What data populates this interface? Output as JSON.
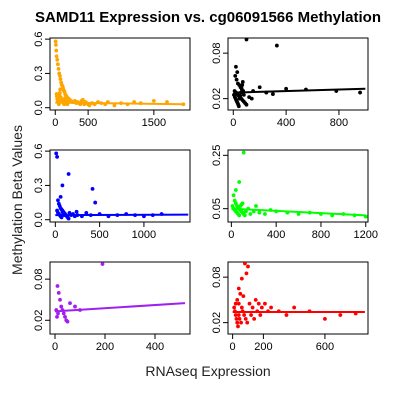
{
  "chart_data": {
    "type": "scatter",
    "title": "SAMD11 Expression vs. cg06091566 Methylation",
    "xlabel": "RNAseq Expression",
    "ylabel": "Methylation Beta Values",
    "panels": [
      {
        "color": "#FFA500",
        "xlim": [
          -80,
          2050
        ],
        "ylim": [
          -0.02,
          0.61
        ],
        "xticks": [
          0,
          500,
          1500
        ],
        "yticks": [
          0.0,
          0.3,
          0.6
        ],
        "xticklabels": [
          "0",
          "500",
          "1500"
        ],
        "yticklabels": [
          "0.0",
          "0.3",
          "0.6"
        ],
        "fit": [
          [
            0,
            0.045
          ],
          [
            1950,
            0.03
          ]
        ],
        "points": [
          [
            5,
            0.58
          ],
          [
            10,
            0.55
          ],
          [
            15,
            0.5
          ],
          [
            20,
            0.45
          ],
          [
            30,
            0.42
          ],
          [
            40,
            0.38
          ],
          [
            50,
            0.34
          ],
          [
            60,
            0.3
          ],
          [
            70,
            0.28
          ],
          [
            80,
            0.25
          ],
          [
            90,
            0.22
          ],
          [
            100,
            0.2
          ],
          [
            110,
            0.19
          ],
          [
            120,
            0.17
          ],
          [
            130,
            0.15
          ],
          [
            140,
            0.14
          ],
          [
            150,
            0.12
          ],
          [
            160,
            0.11
          ],
          [
            170,
            0.1
          ],
          [
            180,
            0.09
          ],
          [
            200,
            0.08
          ],
          [
            220,
            0.07
          ],
          [
            240,
            0.06
          ],
          [
            260,
            0.05
          ],
          [
            280,
            0.05
          ],
          [
            300,
            0.06
          ],
          [
            320,
            0.04
          ],
          [
            340,
            0.05
          ],
          [
            360,
            0.04
          ],
          [
            380,
            0.03
          ],
          [
            400,
            0.06
          ],
          [
            420,
            0.07
          ],
          [
            440,
            0.03
          ],
          [
            460,
            0.05
          ],
          [
            480,
            0.04
          ],
          [
            500,
            0.03
          ],
          [
            520,
            0.02
          ],
          [
            560,
            0.04
          ],
          [
            600,
            0.03
          ],
          [
            650,
            0.05
          ],
          [
            700,
            0.04
          ],
          [
            760,
            0.03
          ],
          [
            800,
            0.05
          ],
          [
            900,
            0.02
          ],
          [
            1000,
            0.04
          ],
          [
            1100,
            0.03
          ],
          [
            1200,
            0.05
          ],
          [
            1300,
            0.04
          ],
          [
            1500,
            0.06
          ],
          [
            1700,
            0.05
          ],
          [
            1950,
            0.03
          ],
          [
            20,
            0.12
          ],
          [
            25,
            0.1
          ],
          [
            30,
            0.08
          ],
          [
            35,
            0.07
          ],
          [
            40,
            0.06
          ],
          [
            45,
            0.05
          ],
          [
            50,
            0.04
          ],
          [
            55,
            0.03
          ],
          [
            60,
            0.09
          ],
          [
            65,
            0.11
          ],
          [
            70,
            0.13
          ],
          [
            75,
            0.16
          ],
          [
            85,
            0.09
          ],
          [
            95,
            0.07
          ],
          [
            105,
            0.06
          ],
          [
            115,
            0.05
          ],
          [
            125,
            0.04
          ],
          [
            135,
            0.03
          ],
          [
            145,
            0.08
          ],
          [
            155,
            0.07
          ],
          [
            165,
            0.06
          ],
          [
            175,
            0.04
          ],
          [
            185,
            0.03
          ],
          [
            195,
            0.05
          ]
        ]
      },
      {
        "color": "#000000",
        "xlim": [
          -40,
          1020
        ],
        "ylim": [
          0.005,
          0.1
        ],
        "xticks": [
          0,
          400,
          800
        ],
        "yticks": [
          0.02,
          0.08
        ],
        "xticklabels": [
          "0",
          "400",
          "800"
        ],
        "yticklabels": [
          "0.02",
          "0.08"
        ],
        "fit": [
          [
            0,
            0.028
          ],
          [
            1000,
            0.033
          ]
        ],
        "points": [
          [
            100,
            0.098
          ],
          [
            330,
            0.09
          ],
          [
            20,
            0.062
          ],
          [
            30,
            0.055
          ],
          [
            15,
            0.05
          ],
          [
            25,
            0.045
          ],
          [
            35,
            0.04
          ],
          [
            45,
            0.038
          ],
          [
            55,
            0.035
          ],
          [
            65,
            0.032
          ],
          [
            75,
            0.03
          ],
          [
            10,
            0.03
          ],
          [
            20,
            0.028
          ],
          [
            30,
            0.026
          ],
          [
            40,
            0.024
          ],
          [
            50,
            0.022
          ],
          [
            60,
            0.02
          ],
          [
            70,
            0.018
          ],
          [
            80,
            0.016
          ],
          [
            90,
            0.014
          ],
          [
            100,
            0.012
          ],
          [
            5,
            0.025
          ],
          [
            12,
            0.022
          ],
          [
            18,
            0.02
          ],
          [
            22,
            0.018
          ],
          [
            28,
            0.016
          ],
          [
            33,
            0.014
          ],
          [
            38,
            0.012
          ],
          [
            42,
            0.01
          ],
          [
            48,
            0.02
          ],
          [
            52,
            0.024
          ],
          [
            58,
            0.028
          ],
          [
            62,
            0.034
          ],
          [
            68,
            0.038
          ],
          [
            72,
            0.042
          ],
          [
            150,
            0.03
          ],
          [
            200,
            0.035
          ],
          [
            250,
            0.028
          ],
          [
            300,
            0.026
          ],
          [
            400,
            0.033
          ],
          [
            550,
            0.032
          ],
          [
            780,
            0.03
          ],
          [
            960,
            0.028
          ],
          [
            80,
            0.025
          ],
          [
            120,
            0.022
          ],
          [
            140,
            0.02
          ]
        ]
      },
      {
        "color": "#0000FF",
        "xlim": [
          -60,
          1520
        ],
        "ylim": [
          -0.02,
          0.61
        ],
        "xticks": [
          0,
          500,
          1000
        ],
        "yticks": [
          0.0,
          0.3,
          0.6
        ],
        "xticklabels": [
          "0",
          "500",
          "1000"
        ],
        "yticklabels": [
          "0.0",
          "0.3",
          "0.6"
        ],
        "fit": [
          [
            0,
            0.04
          ],
          [
            1500,
            0.045
          ]
        ],
        "points": [
          [
            10,
            0.58
          ],
          [
            20,
            0.55
          ],
          [
            150,
            0.4
          ],
          [
            80,
            0.3
          ],
          [
            60,
            0.2
          ],
          [
            420,
            0.27
          ],
          [
            450,
            0.15
          ],
          [
            30,
            0.17
          ],
          [
            40,
            0.14
          ],
          [
            50,
            0.12
          ],
          [
            60,
            0.1
          ],
          [
            70,
            0.09
          ],
          [
            80,
            0.08
          ],
          [
            90,
            0.07
          ],
          [
            100,
            0.06
          ],
          [
            110,
            0.05
          ],
          [
            120,
            0.04
          ],
          [
            130,
            0.03
          ],
          [
            140,
            0.02
          ],
          [
            150,
            0.01
          ],
          [
            20,
            0.08
          ],
          [
            30,
            0.06
          ],
          [
            40,
            0.05
          ],
          [
            50,
            0.04
          ],
          [
            60,
            0.03
          ],
          [
            70,
            0.02
          ],
          [
            80,
            0.07
          ],
          [
            90,
            0.05
          ],
          [
            100,
            0.04
          ],
          [
            200,
            0.05
          ],
          [
            250,
            0.04
          ],
          [
            300,
            0.03
          ],
          [
            350,
            0.06
          ],
          [
            400,
            0.04
          ],
          [
            500,
            0.05
          ],
          [
            600,
            0.03
          ],
          [
            700,
            0.04
          ],
          [
            800,
            0.05
          ],
          [
            900,
            0.04
          ],
          [
            1000,
            0.03
          ],
          [
            1100,
            0.04
          ],
          [
            1200,
            0.05
          ],
          [
            160,
            0.06
          ],
          [
            180,
            0.04
          ],
          [
            220,
            0.03
          ],
          [
            240,
            0.07
          ]
        ]
      },
      {
        "color": "#00FF00",
        "xlim": [
          -30,
          1220
        ],
        "ylim": [
          0.0,
          0.27
        ],
        "xticks": [
          0,
          400,
          800,
          1200
        ],
        "yticks": [
          0.05,
          0.25
        ],
        "xticklabels": [
          "0",
          "400",
          "800",
          "1200"
        ],
        "yticklabels": [
          "0.05",
          "0.25"
        ],
        "fit": [
          [
            0,
            0.05
          ],
          [
            1200,
            0.025
          ]
        ],
        "points": [
          [
            110,
            0.26
          ],
          [
            70,
            0.15
          ],
          [
            40,
            0.12
          ],
          [
            20,
            0.1
          ],
          [
            30,
            0.08
          ],
          [
            40,
            0.07
          ],
          [
            50,
            0.06
          ],
          [
            60,
            0.055
          ],
          [
            70,
            0.05
          ],
          [
            80,
            0.045
          ],
          [
            90,
            0.04
          ],
          [
            100,
            0.035
          ],
          [
            110,
            0.03
          ],
          [
            120,
            0.025
          ],
          [
            10,
            0.06
          ],
          [
            20,
            0.05
          ],
          [
            30,
            0.045
          ],
          [
            40,
            0.04
          ],
          [
            50,
            0.035
          ],
          [
            60,
            0.03
          ],
          [
            70,
            0.025
          ],
          [
            80,
            0.06
          ],
          [
            90,
            0.065
          ],
          [
            100,
            0.07
          ],
          [
            150,
            0.05
          ],
          [
            200,
            0.04
          ],
          [
            250,
            0.035
          ],
          [
            300,
            0.03
          ],
          [
            350,
            0.045
          ],
          [
            400,
            0.04
          ],
          [
            500,
            0.035
          ],
          [
            600,
            0.03
          ],
          [
            700,
            0.035
          ],
          [
            800,
            0.03
          ],
          [
            900,
            0.025
          ],
          [
            1000,
            0.03
          ],
          [
            1100,
            0.025
          ],
          [
            1200,
            0.02
          ],
          [
            130,
            0.04
          ],
          [
            170,
            0.03
          ],
          [
            220,
            0.06
          ]
        ]
      },
      {
        "color": "#A020F0",
        "xlim": [
          -20,
          540
        ],
        "ylim": [
          0.0,
          0.105
        ],
        "xticks": [
          0,
          200,
          400
        ],
        "yticks": [
          0.02,
          0.08
        ],
        "xticklabels": [
          "0",
          "200",
          "400"
        ],
        "yticklabels": [
          "0.02",
          "0.08"
        ],
        "fit": [
          [
            0,
            0.033
          ],
          [
            520,
            0.045
          ]
        ],
        "points": [
          [
            190,
            0.102
          ],
          [
            10,
            0.07
          ],
          [
            15,
            0.06
          ],
          [
            20,
            0.05
          ],
          [
            25,
            0.04
          ],
          [
            30,
            0.035
          ],
          [
            35,
            0.03
          ],
          [
            40,
            0.025
          ],
          [
            45,
            0.02
          ],
          [
            50,
            0.018
          ],
          [
            60,
            0.045
          ],
          [
            80,
            0.04
          ],
          [
            100,
            0.035
          ],
          [
            5,
            0.035
          ],
          [
            12,
            0.03
          ],
          [
            8,
            0.025
          ]
        ]
      },
      {
        "color": "#FF0000",
        "xlim": [
          -30,
          880
        ],
        "ylim": [
          0.005,
          0.1
        ],
        "xticks": [
          0,
          200,
          600
        ],
        "yticks": [
          0.02,
          0.08
        ],
        "xticklabels": [
          "0",
          "200",
          "600"
        ],
        "yticklabels": [
          "0.02",
          "0.08"
        ],
        "fit": [
          [
            0,
            0.034
          ],
          [
            860,
            0.034
          ]
        ],
        "points": [
          [
            80,
            0.098
          ],
          [
            100,
            0.094
          ],
          [
            90,
            0.085
          ],
          [
            60,
            0.078
          ],
          [
            40,
            0.065
          ],
          [
            50,
            0.058
          ],
          [
            30,
            0.05
          ],
          [
            20,
            0.045
          ],
          [
            70,
            0.055
          ],
          [
            110,
            0.045
          ],
          [
            130,
            0.04
          ],
          [
            150,
            0.05
          ],
          [
            170,
            0.045
          ],
          [
            190,
            0.04
          ],
          [
            210,
            0.045
          ],
          [
            230,
            0.035
          ],
          [
            10,
            0.04
          ],
          [
            15,
            0.035
          ],
          [
            20,
            0.03
          ],
          [
            25,
            0.025
          ],
          [
            30,
            0.02
          ],
          [
            35,
            0.015
          ],
          [
            40,
            0.03
          ],
          [
            45,
            0.025
          ],
          [
            55,
            0.02
          ],
          [
            65,
            0.035
          ],
          [
            75,
            0.03
          ],
          [
            85,
            0.025
          ],
          [
            95,
            0.02
          ],
          [
            120,
            0.03
          ],
          [
            140,
            0.025
          ],
          [
            160,
            0.035
          ],
          [
            180,
            0.03
          ],
          [
            250,
            0.04
          ],
          [
            300,
            0.035
          ],
          [
            350,
            0.03
          ],
          [
            400,
            0.04
          ],
          [
            500,
            0.035
          ],
          [
            600,
            0.025
          ],
          [
            700,
            0.03
          ],
          [
            800,
            0.032
          ],
          [
            40,
            0.045
          ],
          [
            60,
            0.04
          ]
        ]
      }
    ]
  }
}
